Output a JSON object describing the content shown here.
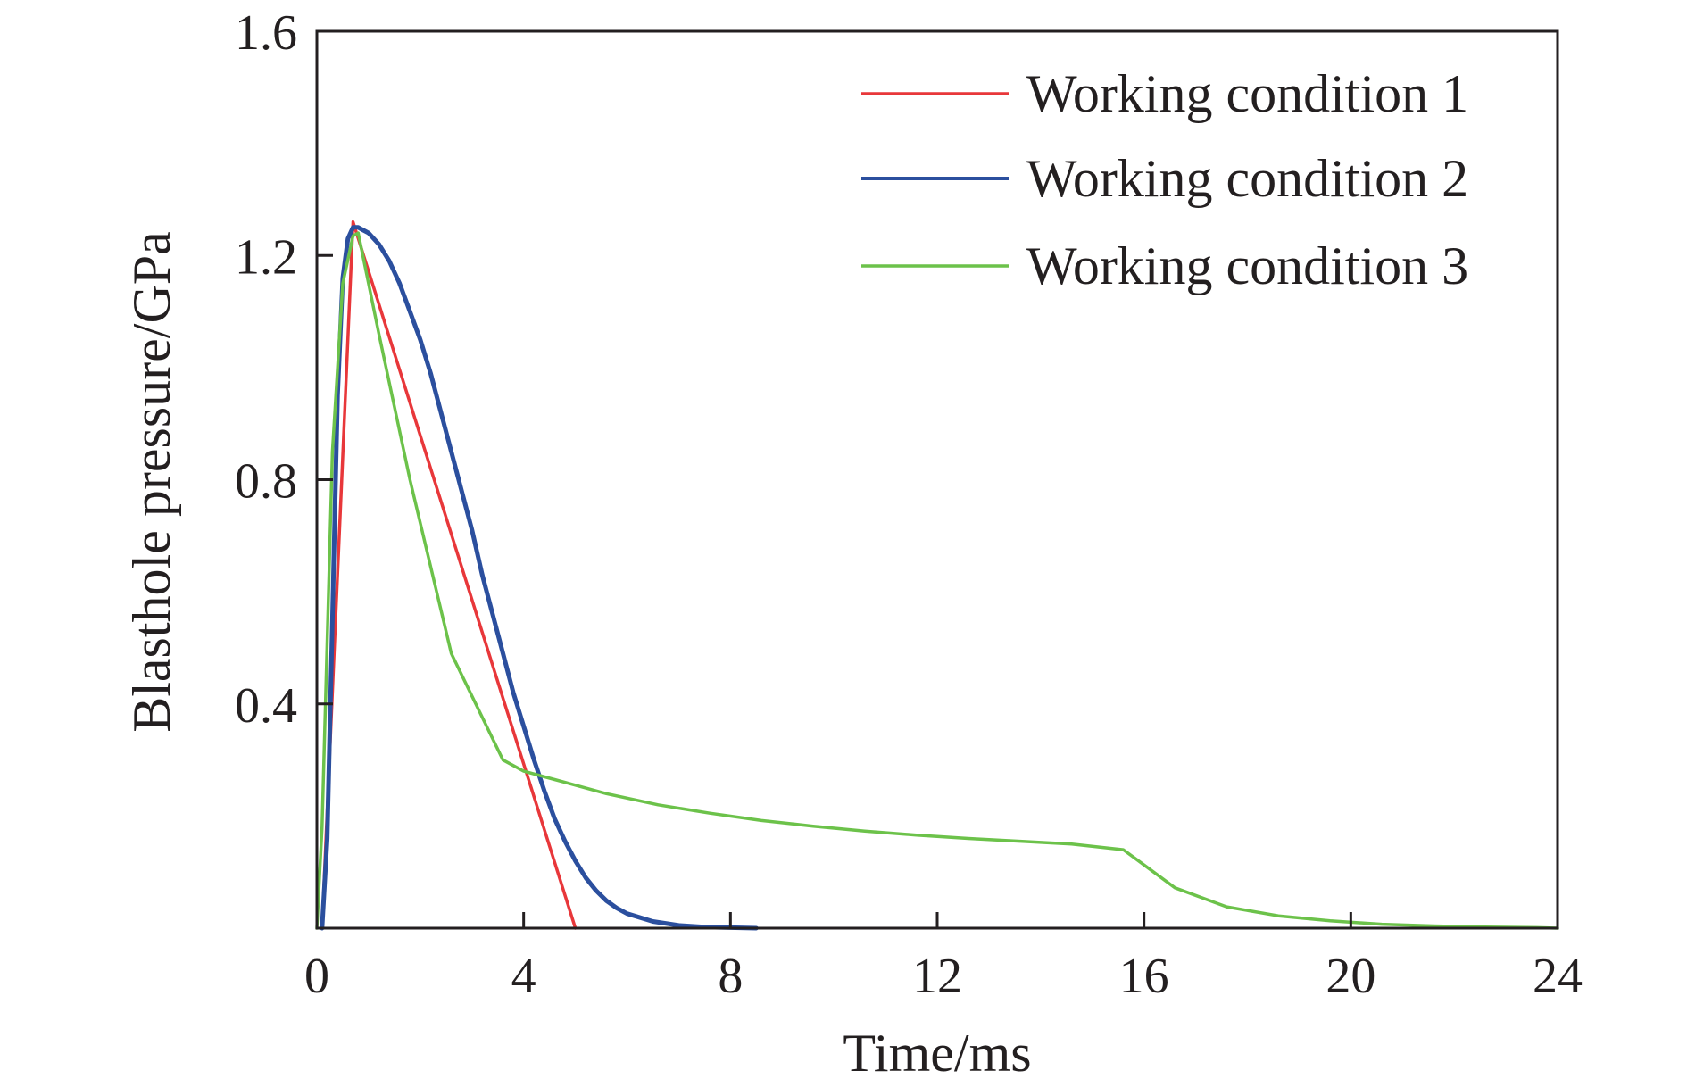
{
  "chart_data": {
    "type": "line",
    "title": "",
    "xlabel": "Time/ms",
    "ylabel": "Blasthole pressure/GPa",
    "xlim": [
      0,
      24
    ],
    "ylim": [
      0,
      1.6
    ],
    "xticks": [
      0,
      4,
      8,
      12,
      16,
      20,
      24
    ],
    "yticks": [
      0.4,
      0.8,
      1.2,
      1.6
    ],
    "xtick_labels": [
      "0",
      "4",
      "8",
      "12",
      "16",
      "20",
      "24"
    ],
    "ytick_labels": [
      "0.4",
      "0.8",
      "1.2",
      "1.6"
    ],
    "grid": false,
    "legend_position": "top-right",
    "series": [
      {
        "name": "Working condition 1",
        "color": "#e8373a",
        "x": [
          0.1,
          0.7,
          5.0
        ],
        "y": [
          0.0,
          1.26,
          0.0
        ]
      },
      {
        "name": "Working condition 2",
        "color": "#2b4f9e",
        "x": [
          0.1,
          0.2,
          0.3,
          0.4,
          0.5,
          0.6,
          0.7,
          0.8,
          0.9,
          1.0,
          1.2,
          1.4,
          1.6,
          1.8,
          2.0,
          2.2,
          2.4,
          2.6,
          2.8,
          3.0,
          3.2,
          3.4,
          3.6,
          3.8,
          4.0,
          4.2,
          4.4,
          4.6,
          4.8,
          5.0,
          5.2,
          5.4,
          5.6,
          5.8,
          6.0,
          6.5,
          7.0,
          7.5,
          8.0,
          8.5
        ],
        "y": [
          0.0,
          0.16,
          0.55,
          0.95,
          1.16,
          1.23,
          1.25,
          1.25,
          1.245,
          1.24,
          1.22,
          1.19,
          1.15,
          1.1,
          1.05,
          0.99,
          0.92,
          0.85,
          0.78,
          0.71,
          0.63,
          0.56,
          0.49,
          0.42,
          0.36,
          0.3,
          0.245,
          0.195,
          0.155,
          0.12,
          0.09,
          0.067,
          0.049,
          0.036,
          0.026,
          0.012,
          0.005,
          0.002,
          0.001,
          0.0
        ]
      },
      {
        "name": "Working condition 3",
        "color": "#6cc24a",
        "x": [
          0.0,
          0.1,
          0.3,
          0.5,
          0.7,
          0.8,
          1.2,
          1.8,
          2.6,
          3.6,
          4.0,
          4.6,
          5.6,
          6.6,
          7.6,
          8.6,
          9.6,
          10.6,
          11.6,
          12.6,
          13.6,
          14.6,
          15.6,
          16.6,
          17.6,
          18.6,
          19.6,
          20.6,
          21.6,
          22.6,
          23.6,
          24.0
        ],
        "y": [
          0.0,
          0.18,
          0.85,
          1.15,
          1.235,
          1.24,
          1.06,
          0.8,
          0.49,
          0.3,
          0.28,
          0.265,
          0.24,
          0.22,
          0.205,
          0.192,
          0.182,
          0.173,
          0.166,
          0.16,
          0.155,
          0.15,
          0.14,
          0.072,
          0.038,
          0.022,
          0.013,
          0.007,
          0.004,
          0.002,
          0.001,
          0.0
        ]
      }
    ]
  }
}
